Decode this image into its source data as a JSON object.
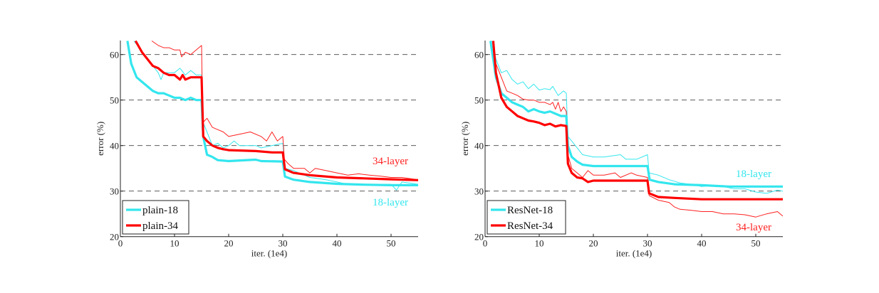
{
  "chart_data": [
    {
      "type": "line",
      "xlabel": "iter. (1e4)",
      "ylabel": "error (%)",
      "xlim": [
        0,
        55
      ],
      "ylim": [
        20,
        63
      ],
      "xticks": [
        "0",
        "10",
        "20",
        "30",
        "40",
        "50"
      ],
      "yticks": [
        "20",
        "30",
        "40",
        "50",
        "60"
      ],
      "grid": "horizontal dashed",
      "legend_placement": "bottom-left",
      "legend": [
        "plain-18",
        "plain-34"
      ],
      "annotations": [
        {
          "text": "34-layer",
          "color": "#ff2020"
        },
        {
          "text": "18-layer",
          "color": "#33e6ee"
        }
      ],
      "series": [
        {
          "name": "plain-18",
          "style": "thin",
          "color": "#33e6ee",
          "x": [
            2.5,
            5,
            7,
            7.5,
            8,
            10,
            11,
            12,
            13,
            14,
            15,
            15.3,
            16,
            17,
            18,
            19,
            20,
            21,
            22,
            25,
            26,
            28,
            30,
            30.4,
            32,
            35,
            38,
            40,
            42,
            44,
            45,
            48,
            50,
            51,
            52,
            55
          ],
          "y": [
            63,
            59,
            56,
            54.5,
            56,
            56,
            57,
            55.5,
            56.5,
            55.5,
            55.5,
            45,
            43,
            40,
            40.5,
            39.5,
            40,
            41,
            40,
            40,
            39.5,
            40,
            40.5,
            35,
            34.5,
            33,
            32.5,
            32,
            31.5,
            31.5,
            31.3,
            31.5,
            31.5,
            30.2,
            32,
            31.5
          ]
        },
        {
          "name": "plain-34",
          "style": "thin",
          "color": "#ff2020",
          "x": [
            5.8,
            7,
            8,
            9,
            10,
            11,
            11.3,
            12,
            13,
            14,
            15,
            15.2,
            16,
            17,
            18,
            19,
            20,
            22,
            24,
            26,
            27,
            28,
            29,
            30,
            30.3,
            31,
            32,
            34,
            35,
            36,
            38,
            40,
            42,
            44,
            46,
            48,
            50,
            52,
            55
          ],
          "y": [
            63,
            62,
            61.5,
            61.5,
            61,
            61,
            59.5,
            60.5,
            60,
            61,
            62,
            45,
            46,
            44,
            43.5,
            43,
            42,
            42.5,
            43,
            42,
            41,
            43,
            41,
            42,
            37,
            36,
            35,
            35,
            34,
            35,
            34.5,
            34,
            33.5,
            33.8,
            33.5,
            33.3,
            33,
            33,
            32.5
          ]
        },
        {
          "name": "plain-18",
          "style": "bold",
          "color": "#33e6ee",
          "x": [
            1.3,
            2,
            3,
            4,
            5,
            6,
            7,
            8,
            9,
            10,
            11,
            12,
            13,
            14,
            15,
            15.3,
            16,
            17,
            18,
            20,
            25,
            26,
            30,
            30.4,
            32,
            35,
            40,
            45,
            50,
            55
          ],
          "y": [
            63,
            58,
            55,
            54,
            53,
            52,
            51.5,
            51.5,
            51,
            50.5,
            50.5,
            50,
            50.5,
            50,
            50,
            42,
            38,
            37.5,
            36.8,
            36.6,
            36.9,
            36.6,
            36.5,
            33.2,
            32.5,
            32,
            31.6,
            31.4,
            31.3,
            31.3
          ]
        },
        {
          "name": "plain-34",
          "style": "bold",
          "color": "#ff0000",
          "x": [
            2.8,
            4,
            5,
            6,
            7,
            8,
            9,
            10,
            11,
            11.5,
            12,
            13,
            14,
            15,
            15.3,
            16,
            17,
            18,
            19,
            20,
            25,
            28,
            30,
            30.4,
            32,
            35,
            40,
            45,
            50,
            55
          ],
          "y": [
            63,
            60.5,
            59,
            57.5,
            57,
            56,
            55.5,
            55.5,
            54.5,
            55.5,
            54.5,
            55,
            55,
            55,
            42,
            41,
            40,
            39.5,
            39.2,
            39,
            38.8,
            38.5,
            38.5,
            34.8,
            34,
            33.5,
            33,
            32.8,
            32.6,
            32.4
          ]
        }
      ]
    },
    {
      "type": "line",
      "xlabel": "iter. (1e4)",
      "ylabel": "error (%)",
      "xlim": [
        0,
        55
      ],
      "ylim": [
        20,
        63
      ],
      "xticks": [
        "0",
        "10",
        "20",
        "30",
        "40",
        "50"
      ],
      "yticks": [
        "20",
        "30",
        "40",
        "50",
        "60"
      ],
      "grid": "horizontal dashed",
      "legend_placement": "bottom-left",
      "legend": [
        "ResNet-18",
        "ResNet-34"
      ],
      "annotations": [
        {
          "text": "18-layer",
          "color": "#33e6ee"
        },
        {
          "text": "34-layer",
          "color": "#ff2020"
        }
      ],
      "series": [
        {
          "name": "ResNet-18",
          "style": "thin",
          "color": "#33e6ee",
          "x": [
            1.3,
            2,
            3,
            4,
            5,
            6,
            7,
            8,
            9,
            10,
            11,
            12,
            12.5,
            13.5,
            14.5,
            15,
            15.3,
            16,
            17,
            18,
            20,
            22,
            25,
            26,
            28,
            30,
            30.3,
            32,
            34,
            36,
            38,
            40,
            42,
            44,
            46,
            48,
            50,
            52,
            54,
            55
          ],
          "y": [
            63,
            59,
            56,
            56.5,
            54.5,
            53.5,
            54,
            52.5,
            53.5,
            52.2,
            52.5,
            52.3,
            53,
            51,
            52,
            51.5,
            42,
            41,
            39.5,
            38,
            37.5,
            37.5,
            38,
            37,
            37,
            38,
            34,
            33.5,
            32.5,
            31.8,
            31.5,
            31,
            31.2,
            31,
            30.5,
            30.5,
            29.8,
            29.5,
            30.2,
            30
          ]
        },
        {
          "name": "ResNet-34",
          "style": "thin",
          "color": "#ff2020",
          "x": [
            1.5,
            2,
            3,
            4,
            5,
            6,
            7,
            8,
            9,
            10,
            11,
            12,
            12.5,
            13,
            13.5,
            14,
            14.5,
            15,
            15.3,
            16,
            17,
            18,
            19,
            20,
            22,
            24,
            25,
            27,
            28,
            30,
            30.3,
            32,
            34,
            35,
            36,
            38,
            40,
            42,
            44,
            46,
            48,
            50,
            52,
            54,
            55
          ],
          "y": [
            63,
            58,
            55,
            52,
            51.5,
            51,
            50.2,
            50,
            50,
            49.5,
            49.5,
            49,
            49.5,
            48,
            49.5,
            47.5,
            48.5,
            47.5,
            38,
            35,
            34,
            33,
            34.5,
            33.5,
            33.5,
            34,
            33,
            34,
            33.5,
            33,
            29,
            28,
            27.5,
            26.5,
            26,
            25.8,
            25.5,
            25.5,
            25,
            25,
            24.8,
            24.3,
            25,
            25.5,
            24.5
          ]
        },
        {
          "name": "ResNet-18",
          "style": "bold",
          "color": "#33e6ee",
          "x": [
            1,
            2,
            3,
            4,
            5,
            6,
            7,
            8,
            9,
            10,
            11,
            12,
            13,
            14,
            15,
            15.3,
            16,
            17,
            18,
            20,
            25,
            30,
            30.4,
            32,
            35,
            40,
            45,
            50,
            55
          ],
          "y": [
            63,
            55,
            51.5,
            50.5,
            49.5,
            49,
            48.5,
            47.5,
            48,
            47.5,
            47.2,
            47.5,
            47,
            46.5,
            46.5,
            40,
            37.5,
            36.5,
            35.8,
            35.5,
            35.5,
            35.5,
            32.5,
            32,
            31.5,
            31.3,
            31,
            31,
            31
          ]
        },
        {
          "name": "ResNet-34",
          "style": "bold",
          "color": "#ff0000",
          "x": [
            1.5,
            2,
            3,
            4,
            5,
            6,
            7,
            8,
            9,
            10,
            11,
            12,
            13,
            14,
            15,
            15.3,
            16,
            17,
            18,
            19,
            20,
            25,
            30,
            30.3,
            32,
            35,
            40,
            45,
            50,
            55
          ],
          "y": [
            63,
            56,
            50.5,
            48.5,
            47.5,
            46.5,
            46,
            45.5,
            45.3,
            45,
            44.5,
            44.8,
            44.2,
            44.5,
            44.3,
            36,
            34,
            33,
            32.8,
            32,
            32.3,
            32.3,
            32.3,
            29.5,
            28.7,
            28.5,
            28.2,
            28.2,
            28.2,
            28.2
          ]
        }
      ]
    }
  ]
}
